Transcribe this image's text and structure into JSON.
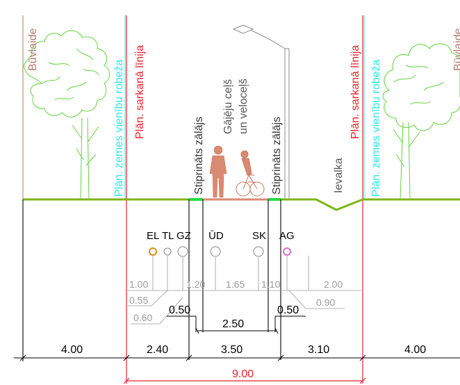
{
  "vertical_labels": {
    "building_line_left": "Būvlaide",
    "land_boundary_left": "Plān. zemes vienību robeža",
    "red_line_left": "Plān. sarkanā līnija",
    "lawn_left": "Stiprināts zālājs",
    "path_line1": "Gājēju ceļš",
    "path_line2": "un veloceļš",
    "lawn_right": "Stiprināts zālājs",
    "ditch": "Ievalka",
    "red_line_right": "Plān. sarkanā līnija",
    "land_boundary_right": "Plān. zemes vienību robeža",
    "building_line_right": "Būvlaide"
  },
  "utilities": {
    "el": "EL",
    "tl": "TL",
    "gz": "GZ",
    "ud": "ŪD",
    "sk": "SK",
    "ag": "AG"
  },
  "offsets": {
    "d100": "1.00",
    "d055": "0.55",
    "d060": "0.60",
    "d120": "1.20",
    "d165": "1.65",
    "d110": "1.10",
    "d200": "2.00",
    "d090": "0.90",
    "d050_left": "0.50",
    "d050_right": "0.50",
    "d250": "2.50"
  },
  "dimensions": {
    "left_zone": "4.00",
    "green_left": "2.40",
    "middle": "3.50",
    "green_right": "3.10",
    "right_zone": "4.00",
    "total": "9.00"
  },
  "colors": {
    "red_line": "#e8202a",
    "cyan_line": "#2ee6ee",
    "building_line": "#b07a6a",
    "ground": "#7cb518",
    "tree": "#5fd33a",
    "figures": "#d98a72",
    "el": "#e88a1a",
    "ag": "#e86ad0",
    "grey": "#9a9a9a",
    "lawn_mark": "#22dd44"
  }
}
